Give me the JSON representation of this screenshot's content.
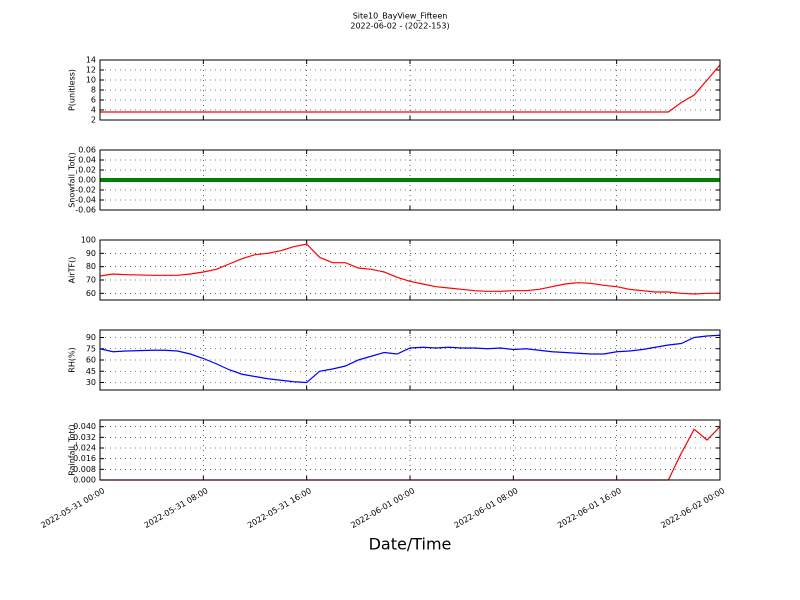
{
  "title": "Site10_BayView_Fifteen",
  "subtitle": "2022-06-02 - (2022-153)",
  "xlabel": "Date/Time",
  "x_axis": {
    "x": [
      "2022-05-31 00:00",
      "2022-05-31 01:00",
      "2022-05-31 02:00",
      "2022-05-31 03:00",
      "2022-05-31 04:00",
      "2022-05-31 05:00",
      "2022-05-31 06:00",
      "2022-05-31 07:00",
      "2022-05-31 08:00",
      "2022-05-31 09:00",
      "2022-05-31 10:00",
      "2022-05-31 11:00",
      "2022-05-31 12:00",
      "2022-05-31 13:00",
      "2022-05-31 14:00",
      "2022-05-31 15:00",
      "2022-05-31 16:00",
      "2022-05-31 17:00",
      "2022-05-31 18:00",
      "2022-05-31 19:00",
      "2022-05-31 20:00",
      "2022-05-31 21:00",
      "2022-05-31 22:00",
      "2022-05-31 23:00",
      "2022-06-01 00:00",
      "2022-06-01 01:00",
      "2022-06-01 02:00",
      "2022-06-01 03:00",
      "2022-06-01 04:00",
      "2022-06-01 05:00",
      "2022-06-01 06:00",
      "2022-06-01 07:00",
      "2022-06-01 08:00",
      "2022-06-01 09:00",
      "2022-06-01 10:00",
      "2022-06-01 11:00",
      "2022-06-01 12:00",
      "2022-06-01 13:00",
      "2022-06-01 14:00",
      "2022-06-01 15:00",
      "2022-06-01 16:00",
      "2022-06-01 17:00",
      "2022-06-01 18:00",
      "2022-06-01 19:00",
      "2022-06-01 20:00",
      "2022-06-01 21:00",
      "2022-06-01 22:00",
      "2022-06-01 23:00",
      "2022-06-02 00:00"
    ],
    "xlim": [
      "2022-05-31 00:00",
      "2022-06-02 00:00"
    ],
    "xticks": [
      "2022-05-31 00:00",
      "2022-05-31 08:00",
      "2022-05-31 16:00",
      "2022-06-01 00:00",
      "2022-06-01 08:00",
      "2022-06-01 16:00",
      "2022-06-02 00:00"
    ]
  },
  "chart_data": [
    {
      "type": "line",
      "ylabel": "P(unitless)",
      "ylim": [
        2,
        14
      ],
      "yticks": [
        2,
        4,
        6,
        8,
        10,
        12,
        14
      ],
      "grid": true,
      "color": "#ff0000",
      "values": [
        3.6,
        3.6,
        3.6,
        3.6,
        3.6,
        3.6,
        3.6,
        3.6,
        3.6,
        3.6,
        3.6,
        3.6,
        3.6,
        3.6,
        3.6,
        3.6,
        3.6,
        3.6,
        3.6,
        3.6,
        3.6,
        3.6,
        3.6,
        3.6,
        3.6,
        3.6,
        3.6,
        3.6,
        3.6,
        3.6,
        3.6,
        3.6,
        3.6,
        3.6,
        3.6,
        3.6,
        3.6,
        3.6,
        3.6,
        3.6,
        3.6,
        3.6,
        3.6,
        3.6,
        3.6,
        5.5,
        7,
        10,
        13
      ]
    },
    {
      "type": "line",
      "ylabel": "Snowfall_Tot()",
      "ylim": [
        -0.06,
        0.06
      ],
      "yticks": [
        {
          "value": -0.06,
          "label": "-0.06"
        },
        {
          "value": -0.04,
          "label": "-0.04"
        },
        {
          "value": -0.02,
          "label": "-0.02"
        },
        {
          "value": 0,
          "label": "0.00"
        },
        {
          "value": 0.02,
          "label": "0.02"
        },
        {
          "value": 0.04,
          "label": "0.04"
        },
        {
          "value": 0.06,
          "label": "0.06"
        }
      ],
      "grid": true,
      "color": "#008000",
      "values": [
        0,
        0,
        0,
        0,
        0,
        0,
        0,
        0,
        0,
        0,
        0,
        0,
        0,
        0,
        0,
        0,
        0,
        0,
        0,
        0,
        0,
        0,
        0,
        0,
        0,
        0,
        0,
        0,
        0,
        0,
        0,
        0,
        0,
        0,
        0,
        0,
        0,
        0,
        0,
        0,
        0,
        0,
        0,
        0,
        0,
        0,
        0,
        0,
        0
      ]
    },
    {
      "type": "line",
      "ylabel": "AirTF()",
      "ylim": [
        55,
        100
      ],
      "yticks": [
        60,
        70,
        80,
        90,
        100
      ],
      "grid": true,
      "color": "#ff0000",
      "values": [
        73,
        74.5,
        74,
        73.8,
        73.5,
        73.5,
        73.5,
        74.5,
        76,
        78,
        82,
        86,
        89,
        90,
        92,
        95,
        97,
        87,
        83,
        83,
        79,
        78,
        76,
        72,
        69,
        67,
        65,
        64,
        63,
        62,
        61.5,
        61.5,
        62,
        62,
        63,
        65,
        67,
        68,
        67.5,
        66,
        65,
        63,
        62,
        61,
        61,
        60,
        59.5,
        60,
        60
      ]
    },
    {
      "type": "line",
      "ylabel": "RH(%)",
      "ylim": [
        20,
        100
      ],
      "yticks": [
        30,
        45,
        60,
        75,
        90
      ],
      "grid": true,
      "color": "#0000ff",
      "values": [
        75,
        71,
        72,
        72.5,
        73,
        73,
        72,
        68,
        62,
        55,
        47,
        41,
        38,
        35,
        33,
        31,
        30,
        45,
        48,
        52,
        60,
        65,
        70,
        68,
        76,
        77,
        76,
        77,
        76,
        76,
        75,
        76,
        74,
        75,
        73,
        71,
        70,
        69,
        68,
        68,
        71,
        72,
        74,
        77,
        80,
        82,
        90,
        92,
        93
      ]
    },
    {
      "type": "line",
      "ylabel": "Rainfall_Tot()",
      "ylim": [
        0,
        0.045
      ],
      "yticks": [
        {
          "value": 0,
          "label": "0.000"
        },
        {
          "value": 0.008,
          "label": "0.008"
        },
        {
          "value": 0.016,
          "label": "0.016"
        },
        {
          "value": 0.024,
          "label": "0.024"
        },
        {
          "value": 0.032,
          "label": "0.032"
        },
        {
          "value": 0.04,
          "label": "0.040"
        }
      ],
      "grid": true,
      "color": "#ff0000",
      "values": [
        0,
        0,
        0,
        0,
        0,
        0,
        0,
        0,
        0,
        0,
        0,
        0,
        0,
        0,
        0,
        0,
        0,
        0,
        0,
        0,
        0,
        0,
        0,
        0,
        0,
        0,
        0,
        0,
        0,
        0,
        0,
        0,
        0,
        0,
        0,
        0,
        0,
        0,
        0,
        0,
        0,
        0,
        0,
        0,
        0,
        0.02,
        0.038,
        0.03,
        0.04
      ]
    }
  ]
}
